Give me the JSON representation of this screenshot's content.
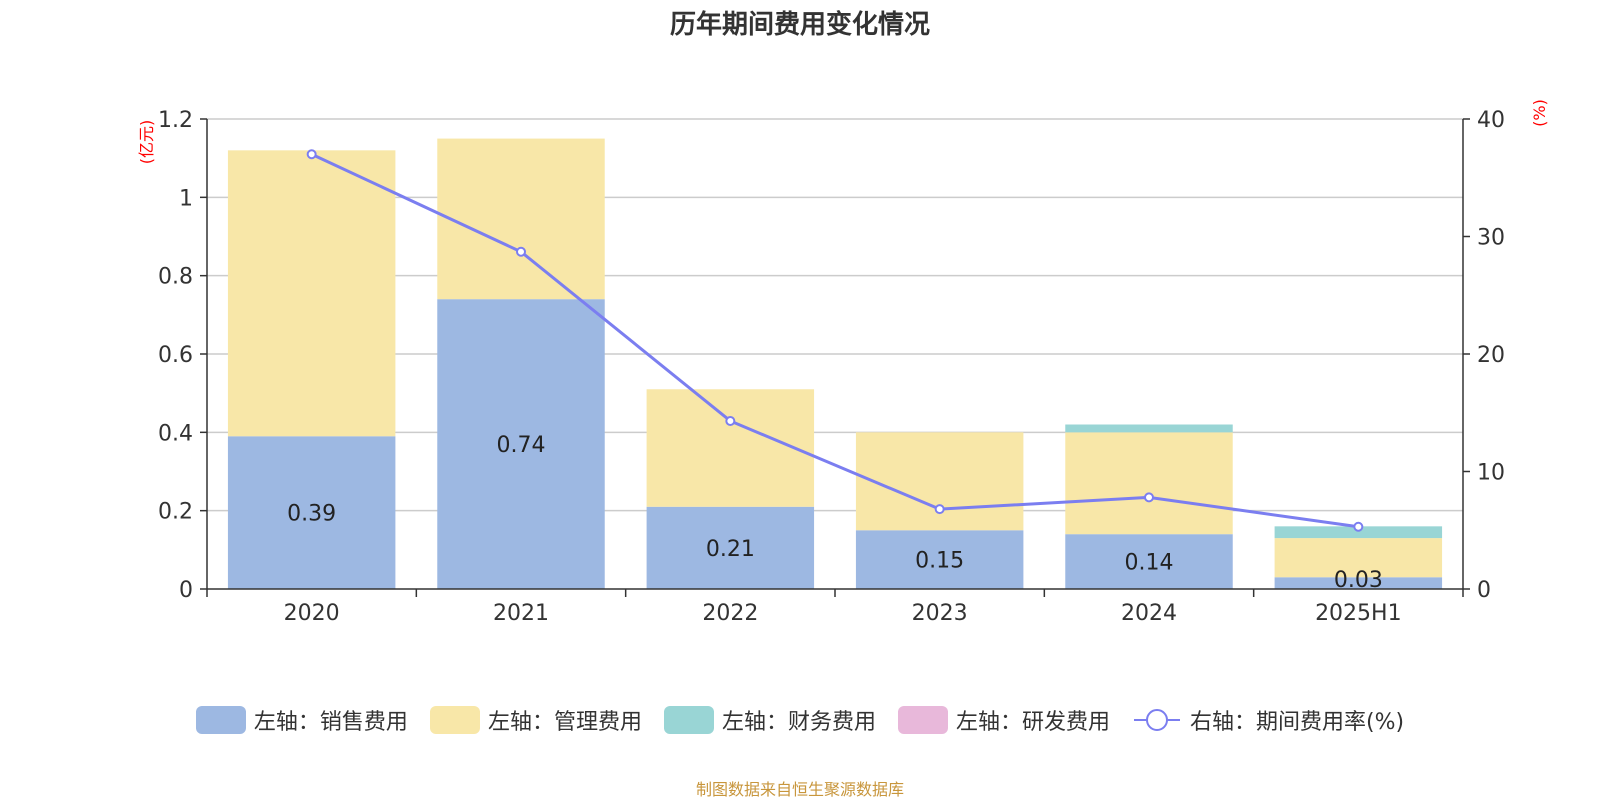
{
  "chart_data": {
    "type": "bar",
    "title": "历年期间费用变化情况",
    "categories": [
      "2020",
      "2021",
      "2022",
      "2023",
      "2024",
      "2025H1"
    ],
    "stacked": true,
    "left_axis": {
      "unit": "(亿元)",
      "ylim": [
        0,
        1.2
      ],
      "ticks": [
        "0",
        "0.2",
        "0.4",
        "0.6",
        "0.8",
        "1",
        "1.2"
      ]
    },
    "right_axis": {
      "unit": "(%)",
      "ylim": [
        0,
        40
      ],
      "ticks": [
        "0",
        "10",
        "20",
        "30",
        "40"
      ]
    },
    "series": [
      {
        "name": "左轴：销售费用",
        "color": "#9db8e2",
        "values": [
          0.39,
          0.74,
          0.21,
          0.15,
          0.14,
          0.03
        ],
        "labels": [
          "0.39",
          "0.74",
          "0.21",
          "0.15",
          "0.14",
          "0.03"
        ]
      },
      {
        "name": "左轴：管理费用",
        "color": "#f8e7a8",
        "values": [
          0.73,
          0.41,
          0.3,
          0.25,
          0.26,
          0.1
        ]
      },
      {
        "name": "左轴：财务费用",
        "color": "#99d5d5",
        "values": [
          0.0,
          0.0,
          0.0,
          0.0,
          0.02,
          0.03
        ]
      },
      {
        "name": "左轴：研发费用",
        "color": "#e8b8da",
        "values": [
          0,
          0,
          0,
          0,
          0,
          0
        ]
      }
    ],
    "line_series": {
      "name": "右轴：期间费用率(%)",
      "color": "#7b7ef0",
      "axis": "right",
      "values": [
        37.0,
        28.7,
        14.3,
        6.8,
        7.8,
        5.3
      ]
    },
    "grid": true,
    "legend_position": "bottom"
  },
  "source_note": "制图数据来自恒生聚源数据库"
}
